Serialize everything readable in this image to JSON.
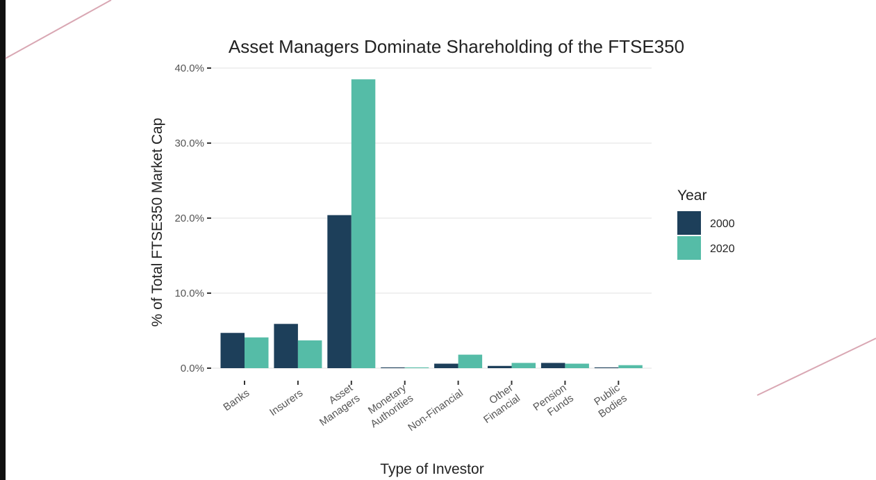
{
  "chart_data": {
    "type": "bar",
    "title": "Asset Managers Dominate Shareholding of the FTSE350",
    "xlabel": "Type of Investor",
    "ylabel": "% of Total FTSE350 Market Cap",
    "ylim": [
      0,
      40
    ],
    "y_ticks": [
      "0.0%",
      "10.0%",
      "20.0%",
      "30.0%",
      "40.0%"
    ],
    "grid": true,
    "legend_title": "Year",
    "legend_position": "right",
    "categories": [
      [
        "Banks"
      ],
      [
        "Insurers"
      ],
      [
        "Asset",
        "Managers"
      ],
      [
        "Monetary",
        "Authorities"
      ],
      [
        "Non-Financial"
      ],
      [
        "Other",
        "Financial"
      ],
      [
        "Pension",
        "Funds"
      ],
      [
        "Public",
        "Bodies"
      ]
    ],
    "series": [
      {
        "name": "2000",
        "color": "#1d3f5a",
        "values": [
          4.7,
          5.9,
          20.4,
          0.1,
          0.6,
          0.3,
          0.7,
          0.1
        ]
      },
      {
        "name": "2020",
        "color": "#55bca7",
        "values": [
          4.1,
          3.7,
          38.5,
          0.1,
          1.8,
          0.7,
          0.6,
          0.4
        ]
      }
    ]
  }
}
